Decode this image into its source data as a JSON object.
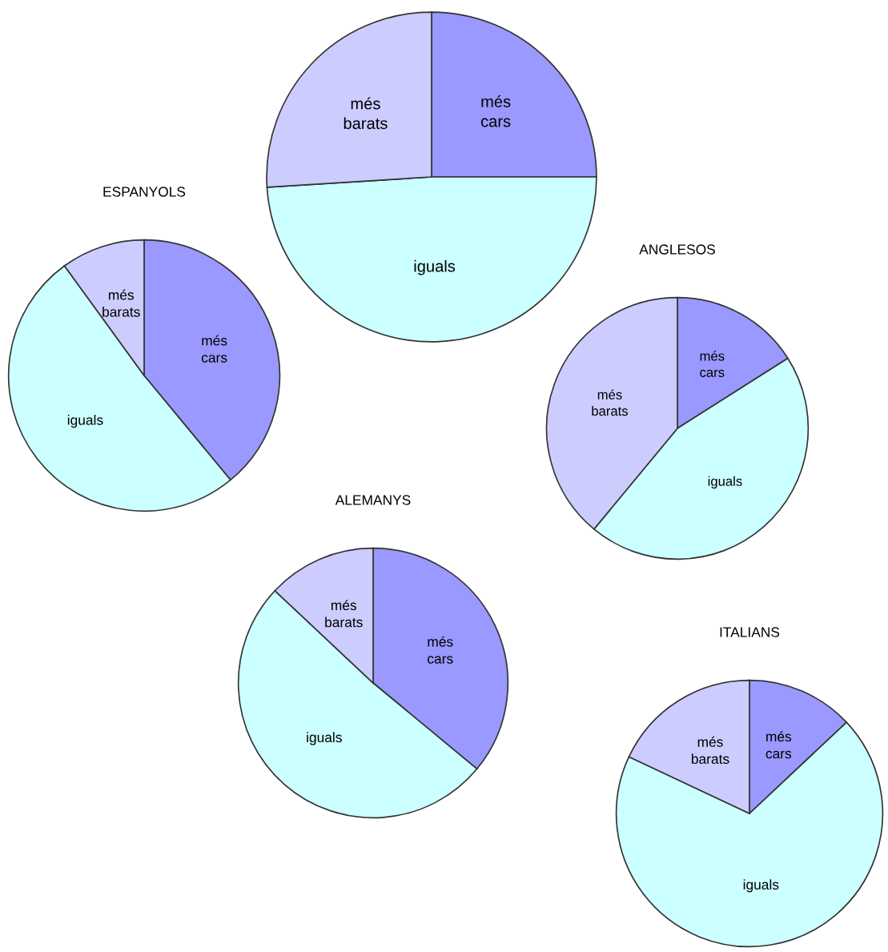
{
  "chart_data": [
    {
      "type": "pie",
      "categories": [
        "més\ncars",
        "iguals",
        "més\nbarats"
      ],
      "values": [
        25,
        49,
        26
      ],
      "colors": [
        "#9999ff",
        "#ccffff",
        "#ccccff"
      ]
    },
    {
      "type": "pie",
      "title": "ESPANYOLS",
      "categories": [
        "més\ncars",
        "iguals",
        "més\nbarats"
      ],
      "values": [
        39,
        51,
        10
      ],
      "colors": [
        "#9999ff",
        "#ccffff",
        "#ccccff"
      ]
    },
    {
      "type": "pie",
      "title": "ANGLESOS",
      "categories": [
        "més\ncars",
        "iguals",
        "més\nbarats"
      ],
      "values": [
        16,
        45,
        39
      ],
      "colors": [
        "#9999ff",
        "#ccffff",
        "#ccccff"
      ]
    },
    {
      "type": "pie",
      "title": "ALEMANYS",
      "categories": [
        "més\ncars",
        "iguals",
        "més\nbarats"
      ],
      "values": [
        36,
        51,
        13
      ],
      "colors": [
        "#9999ff",
        "#ccffff",
        "#ccccff"
      ]
    },
    {
      "type": "pie",
      "title": "ITALIANS",
      "categories": [
        "més\ncars",
        "iguals",
        "més\nbarats"
      ],
      "values": [
        13,
        69,
        18
      ],
      "colors": [
        "#9999ff",
        "#ccffff",
        "#ccccff"
      ]
    }
  ]
}
